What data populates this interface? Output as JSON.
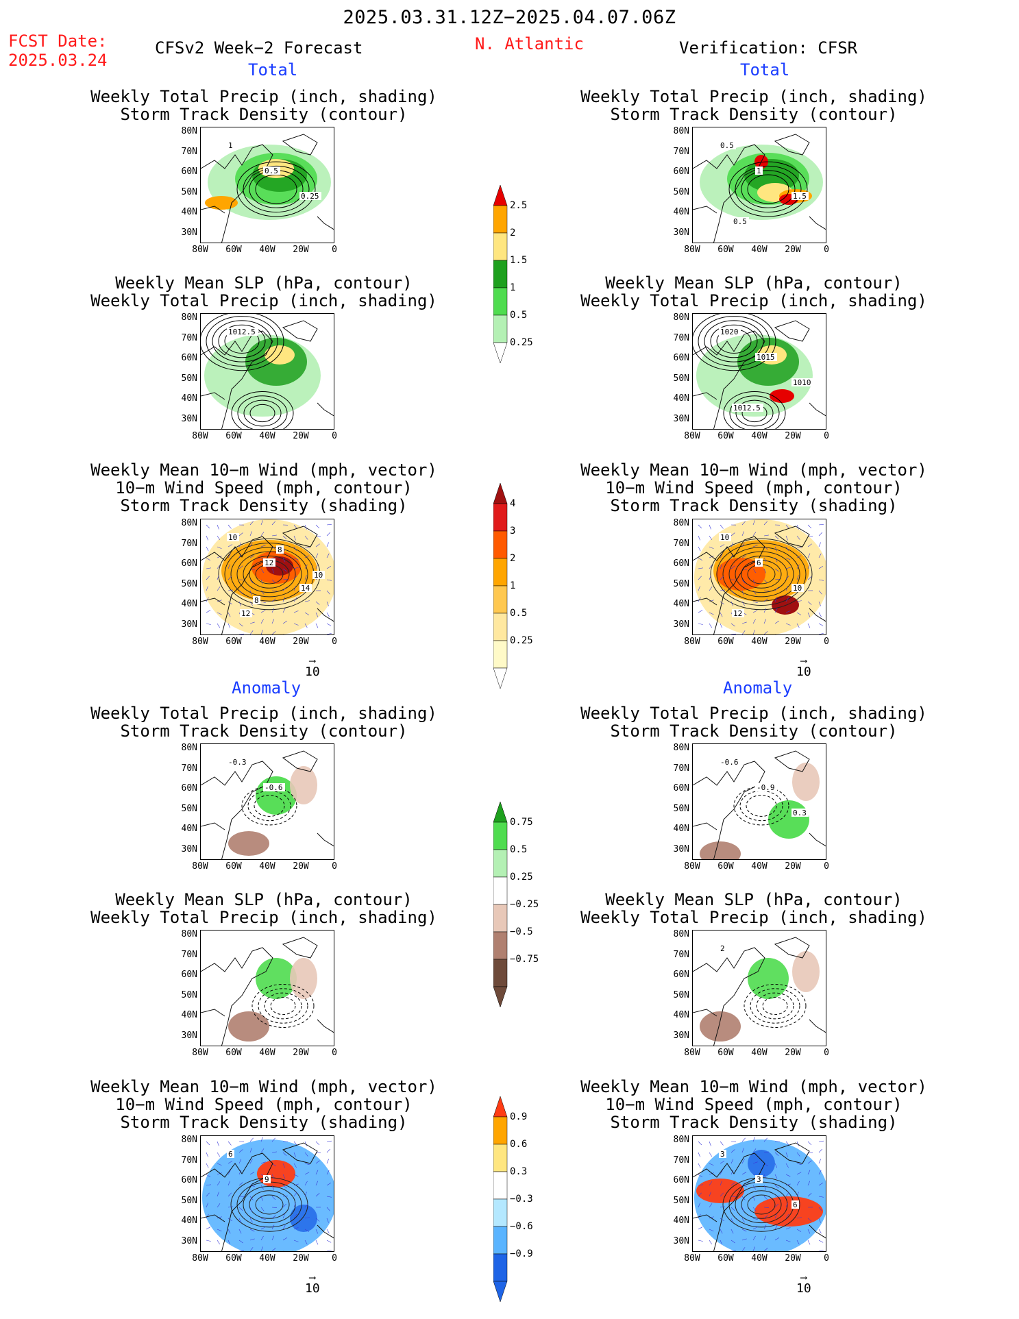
{
  "header": {
    "date_range": "2025.03.31.12Z−2025.04.07.06Z",
    "fcst_label": "FCST Date:",
    "fcst_date": "2025.03.24",
    "model_title": "CFSv2 Week−2 Forecast",
    "region": "N. Atlantic",
    "verification": "Verification: CFSR"
  },
  "sections": {
    "total": "Total",
    "anomaly": "Anomaly"
  },
  "titles": {
    "precip_track": [
      "Weekly Total Precip (inch, shading)",
      "Storm Track Density (contour)"
    ],
    "slp_precip": [
      "Weekly Mean SLP (hPa, contour)",
      "Weekly Total Precip (inch, shading)"
    ],
    "wind_track": [
      "Weekly Mean 10−m Wind (mph, vector)",
      "10−m Wind Speed (mph, contour)",
      "Storm Track Density (shading)"
    ]
  },
  "axes": {
    "lat": [
      "80N",
      "70N",
      "60N",
      "50N",
      "40N",
      "30N"
    ],
    "lon": [
      "80W",
      "60W",
      "40W",
      "20W",
      "0"
    ]
  },
  "reference_vector": "10",
  "colorbars": {
    "precip_total": {
      "labels": [
        "2.5",
        "2",
        "1.5",
        "1",
        "0.5",
        "0.25"
      ],
      "colors": [
        "#e60000",
        "#ffa500",
        "#ffe680",
        "#1ea01e",
        "#4fdc4f",
        "#b4f0b4"
      ]
    },
    "track_total": {
      "labels": [
        "4",
        "3",
        "2",
        "1",
        "0.5",
        "0.25"
      ],
      "colors": [
        "#a01010",
        "#e01a1a",
        "#ff5a00",
        "#ffa500",
        "#ffc850",
        "#ffe8a0",
        "#fffac8"
      ]
    },
    "precip_anom": {
      "labels": [
        "0.75",
        "0.5",
        "0.25",
        "−0.25",
        "−0.5",
        "−0.75"
      ],
      "colors": [
        "#1ea01e",
        "#4fdc4f",
        "#b4f0b4",
        "#ffffff",
        "#e8c8b8",
        "#b08070",
        "#6e4a3a"
      ]
    },
    "track_anom": {
      "labels": [
        "0.9",
        "0.6",
        "0.3",
        "−0.3",
        "−0.6",
        "−0.9"
      ],
      "colors": [
        "#ff3c14",
        "#ffa500",
        "#ffe680",
        "#ffffff",
        "#b4e8ff",
        "#5ab4ff",
        "#1e64e6"
      ]
    }
  },
  "panels": {
    "fc_precip_total": [
      "1",
      "0.5",
      "0.25"
    ],
    "ob_precip_total": [
      "0.5",
      "1",
      "1.5",
      "0.5"
    ],
    "fc_slp_total": [
      "1012.5"
    ],
    "ob_slp_total": [
      "1020",
      "1015",
      "1010",
      "1012.5"
    ],
    "fc_wind_total": [
      "10",
      "12",
      "14",
      "12",
      "8",
      "10",
      "8"
    ],
    "ob_wind_total": [
      "10",
      "6",
      "10",
      "12"
    ],
    "fc_precip_anom": [
      "-0.3",
      "-0.6"
    ],
    "ob_precip_anom": [
      "-0.6",
      "-0.9",
      "0.3"
    ],
    "ob_slp_anom": [
      "2"
    ],
    "fc_wind_anom": [
      "6",
      "9"
    ],
    "ob_wind_anom": [
      "3",
      "3",
      "6"
    ]
  }
}
